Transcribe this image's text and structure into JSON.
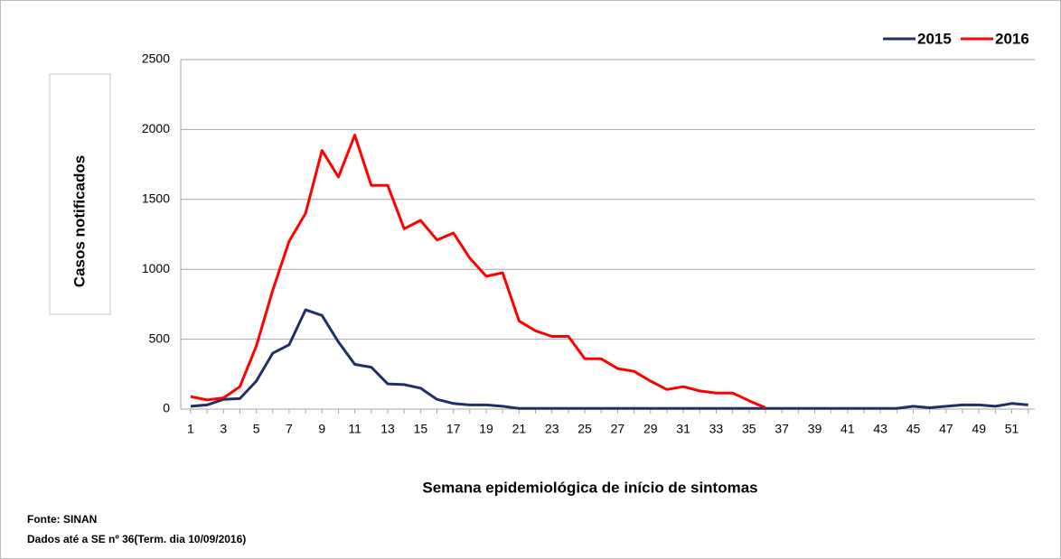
{
  "chart_data": {
    "type": "line",
    "y_label": "Casos  notificados",
    "x_label": "Semana epidemiológica de início de sintomas",
    "source": "Fonte: SINAN",
    "note": "Dados até a SE nº 36(Term. dia  10/09/2016)",
    "categories": [
      1,
      null,
      3,
      null,
      5,
      null,
      7,
      null,
      9,
      null,
      11,
      null,
      13,
      null,
      15,
      null,
      17,
      null,
      19,
      null,
      21,
      null,
      23,
      null,
      25,
      null,
      27,
      null,
      29,
      null,
      31,
      null,
      33,
      null,
      35,
      null,
      37,
      null,
      39,
      null,
      41,
      null,
      43,
      null,
      45,
      null,
      47,
      null,
      49,
      null,
      51,
      null
    ],
    "series": [
      {
        "name": "2015",
        "color": "#1f3068",
        "values": [
          20,
          30,
          70,
          75,
          200,
          400,
          460,
          710,
          670,
          480,
          320,
          300,
          180,
          175,
          150,
          70,
          40,
          30,
          30,
          20,
          5,
          5,
          5,
          5,
          5,
          5,
          5,
          5,
          5,
          5,
          5,
          5,
          5,
          5,
          5,
          5,
          5,
          5,
          5,
          5,
          5,
          5,
          5,
          5,
          20,
          10,
          20,
          30,
          30,
          20,
          40,
          30
        ]
      },
      {
        "name": "2016",
        "color": "#ff0000",
        "values": [
          90,
          65,
          80,
          160,
          450,
          850,
          1200,
          1400,
          1850,
          1660,
          1960,
          1600,
          1600,
          1290,
          1350,
          1210,
          1260,
          1080,
          950,
          975,
          630,
          560,
          520,
          520,
          360,
          360,
          290,
          270,
          200,
          140,
          160,
          130,
          115,
          115,
          60,
          10,
          null,
          null,
          null,
          null,
          null,
          null,
          null,
          null,
          null,
          null,
          null,
          null,
          null,
          null,
          null,
          null
        ]
      }
    ],
    "ylim": [
      0,
      2500
    ],
    "yticks": [
      0,
      500,
      1000,
      1500,
      2000,
      2500
    ],
    "grid": true
  }
}
